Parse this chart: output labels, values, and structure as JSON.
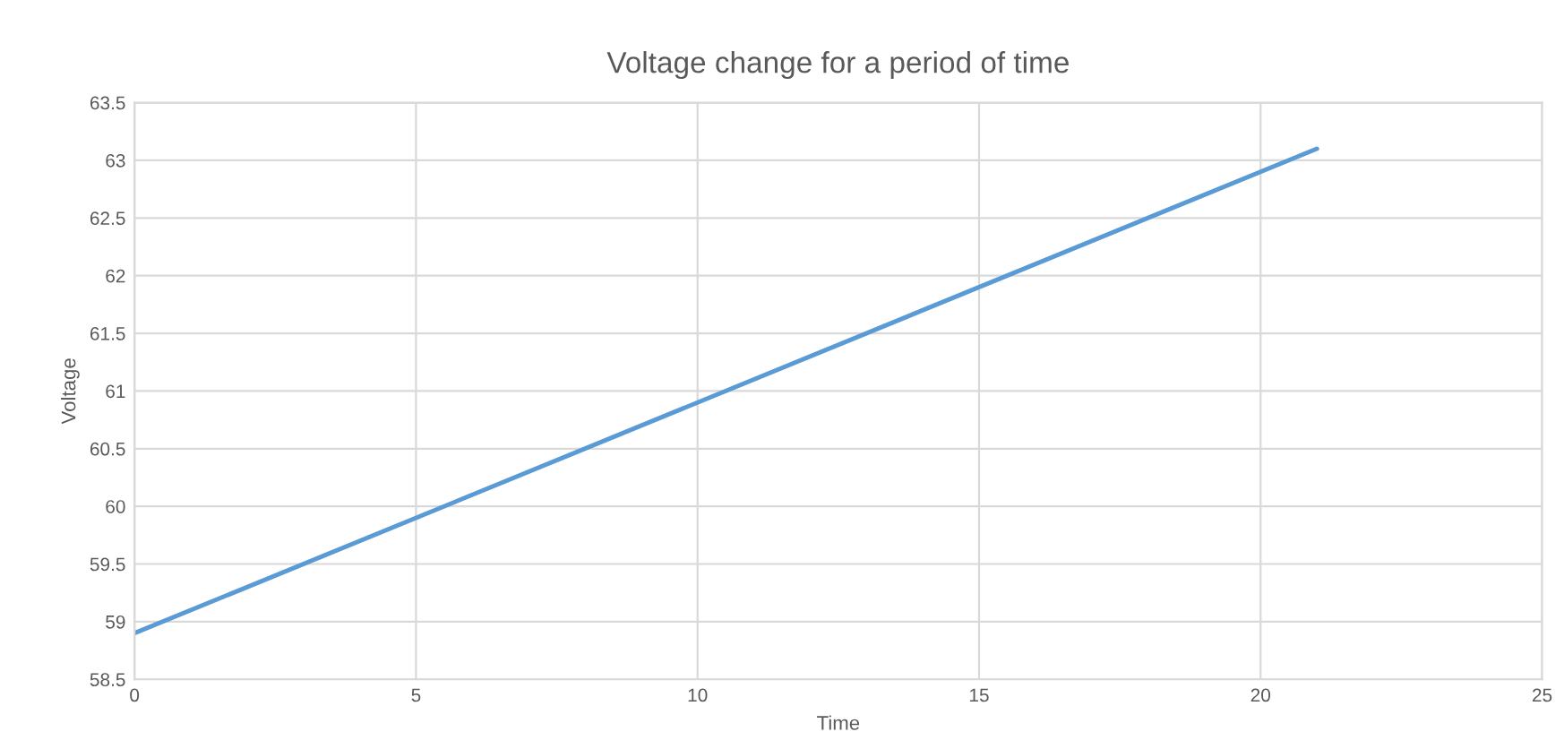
{
  "chart_data": {
    "type": "line",
    "title": "Voltage change for a period of time",
    "xlabel": "Time",
    "ylabel": "Voltage",
    "x": [
      0,
      21
    ],
    "series": [
      {
        "color": "#5b9bd5",
        "values": [
          58.9,
          63.1
        ]
      }
    ],
    "xlim": [
      0,
      25
    ],
    "xticks": [
      0,
      5,
      10,
      15,
      20,
      25
    ],
    "ylim": [
      58.5,
      63.5
    ],
    "yticks": [
      58.5,
      59,
      59.5,
      60,
      60.5,
      61,
      61.5,
      62,
      62.5,
      63,
      63.5
    ],
    "grid": true,
    "marker": "none",
    "line_style": "solid"
  }
}
